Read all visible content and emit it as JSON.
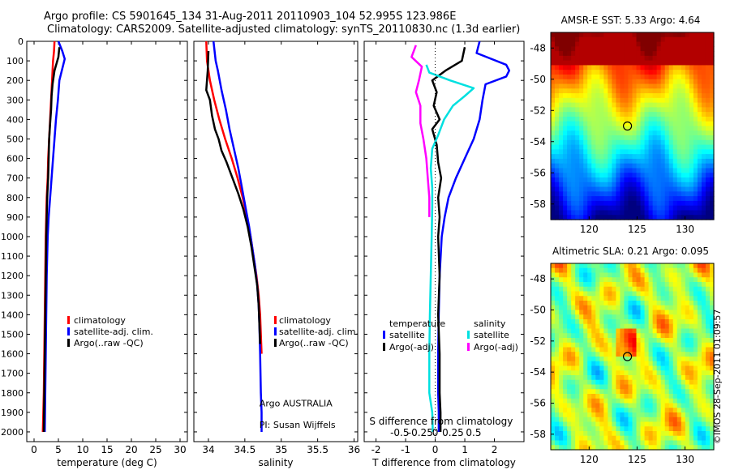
{
  "header": {
    "line1": "Argo profile: CS 5901645_134 31-Aug-2011 20110903_104 52.995S 123.986E",
    "line2": "Climatology: CARS2009. Satellite-adjusted climatology: synTS_20110830.nc (1.3d earlier)"
  },
  "colors": {
    "red": "#ff0000",
    "blue": "#0000ff",
    "black": "#000000",
    "cyan": "#00e0e0",
    "magenta": "#ff00ff"
  },
  "depth_ticks": [
    0,
    100,
    200,
    300,
    400,
    500,
    600,
    700,
    800,
    900,
    1000,
    1100,
    1200,
    1300,
    1400,
    1500,
    1600,
    1700,
    1800,
    1900,
    2000
  ],
  "chart_data": [
    {
      "type": "line",
      "id": "temperature",
      "xlabel": "temperature (deg C)",
      "xlim": [
        -1.5,
        31.5
      ],
      "xticks": [
        0,
        5,
        10,
        15,
        20,
        25,
        30
      ],
      "xtick_labels": [
        "0",
        "5",
        "10",
        "15",
        "20",
        "25",
        "30"
      ],
      "ylim": [
        0,
        2050
      ],
      "legend": {
        "items": [
          {
            "label": "climatology",
            "color": "#ff0000"
          },
          {
            "label": "satellite-adj. clim.",
            "color": "#0000ff"
          },
          {
            "label": "Argo(..raw -QC)",
            "color": "#000000"
          }
        ]
      },
      "series": [
        {
          "name": "climatology",
          "color": "#ff0000",
          "x": [
            4.2,
            4.1,
            3.9,
            3.7,
            3.5,
            3.3,
            3.1,
            2.9,
            2.8,
            2.6,
            2.5,
            2.4,
            2.3,
            2.2,
            2.1,
            2.0,
            1.9,
            1.8
          ],
          "y": [
            0,
            50,
            100,
            200,
            300,
            400,
            500,
            600,
            700,
            800,
            900,
            1000,
            1200,
            1400,
            1600,
            1800,
            1900,
            2000
          ]
        },
        {
          "name": "satellite-adj. clim.",
          "color": "#0000ff",
          "x": [
            5.0,
            5.8,
            6.3,
            5.2,
            4.9,
            4.5,
            4.2,
            3.9,
            3.6,
            3.3,
            3.0,
            2.8,
            2.6,
            2.5,
            2.4,
            2.3,
            2.25,
            2.2
          ],
          "y": [
            0,
            50,
            90,
            200,
            300,
            400,
            500,
            600,
            700,
            800,
            900,
            1000,
            1200,
            1400,
            1600,
            1800,
            1900,
            2000
          ]
        },
        {
          "name": "Argo(..raw -QC)",
          "color": "#000000",
          "x": [
            5.2,
            5.0,
            4.2,
            3.8,
            3.6,
            3.5,
            3.3,
            3.1,
            3.0,
            2.9,
            2.7,
            2.6,
            2.5,
            2.4,
            2.3,
            2.2,
            2.1,
            2.05,
            2.0
          ],
          "y": [
            30,
            80,
            150,
            220,
            280,
            350,
            420,
            500,
            600,
            700,
            800,
            900,
            1000,
            1200,
            1400,
            1600,
            1800,
            1900,
            2000
          ]
        }
      ],
      "annotations": []
    },
    {
      "type": "line",
      "id": "salinity",
      "xlabel": "salinity",
      "xlim": [
        33.8,
        36.05
      ],
      "xticks": [
        34,
        34.5,
        35,
        35.5,
        36
      ],
      "xtick_labels": [
        "34",
        "34.5",
        "35",
        "35.5",
        "36"
      ],
      "ylim": [
        0,
        2050
      ],
      "legend": {
        "items": [
          {
            "label": "climatology",
            "color": "#ff0000"
          },
          {
            "label": "satellite-adj. clim.",
            "color": "#0000ff"
          },
          {
            "label": "Argo(..raw -QC)",
            "color": "#000000"
          }
        ]
      },
      "series": [
        {
          "name": "climatology",
          "color": "#ff0000",
          "x": [
            33.97,
            33.98,
            34.02,
            34.08,
            34.15,
            34.23,
            34.32,
            34.4,
            34.47,
            34.53,
            34.58,
            34.62,
            34.66,
            34.69,
            34.71,
            34.72,
            34.73
          ],
          "y": [
            0,
            100,
            200,
            300,
            400,
            500,
            600,
            700,
            800,
            900,
            1000,
            1100,
            1200,
            1300,
            1400,
            1500,
            1600
          ]
        },
        {
          "name": "satellite-adj. clim.",
          "color": "#0000ff",
          "x": [
            34.07,
            34.1,
            34.13,
            34.18,
            34.24,
            34.29,
            34.35,
            34.41,
            34.46,
            34.51,
            34.56,
            34.6,
            34.64,
            34.67,
            34.69,
            34.7,
            34.71,
            34.72,
            34.73,
            34.73
          ],
          "y": [
            0,
            100,
            150,
            250,
            350,
            450,
            550,
            650,
            750,
            850,
            950,
            1050,
            1150,
            1250,
            1350,
            1450,
            1600,
            1800,
            1900,
            2000
          ]
        },
        {
          "name": "Argo(..raw -QC)",
          "color": "#000000",
          "x": [
            34.0,
            33.99,
            33.97,
            34.02,
            34.05,
            34.09,
            34.14,
            34.18,
            34.25,
            34.33,
            34.41,
            34.48,
            34.54,
            34.59,
            34.63,
            34.67,
            34.69,
            34.7,
            34.71
          ],
          "y": [
            50,
            150,
            250,
            300,
            380,
            450,
            500,
            560,
            620,
            700,
            780,
            860,
            950,
            1050,
            1150,
            1250,
            1350,
            1450,
            1550
          ]
        }
      ],
      "annotations": [
        {
          "text": "Argo AUSTRALIA",
          "x": 34.7,
          "y": 1870
        },
        {
          "text": "PI: Susan Wijffels",
          "x": 34.7,
          "y": 1980
        }
      ]
    },
    {
      "type": "line",
      "id": "difference",
      "xlabel": "T difference from climatology",
      "xlabel_top": "S difference from climatology",
      "xlim": [
        -2.4,
        3.0
      ],
      "xticks": [
        -2,
        -1,
        0,
        1,
        2
      ],
      "xtick_labels": [
        "-2",
        "-1",
        "0",
        "1",
        "2"
      ],
      "sticks_labels": [
        "-0.5",
        "-0.25",
        "0",
        "0.25",
        "0.5"
      ],
      "ylim": [
        0,
        2050
      ],
      "legend": {
        "title_left": "temperature",
        "title_right": "salinity",
        "items": [
          {
            "label": "satellite",
            "color": "#0000ff"
          },
          {
            "label": "Argo(-adj)",
            "color": "#000000"
          },
          {
            "label": "satellite",
            "color": "#00e0e0"
          },
          {
            "label": "Argo(-adj)",
            "color": "#ff00ff"
          }
        ]
      },
      "series": [
        {
          "name": "T satellite",
          "color": "#0000ff",
          "x": [
            1.5,
            1.4,
            2.4,
            2.5,
            2.4,
            1.7,
            1.6,
            1.5,
            1.3,
            1.0,
            0.7,
            0.45,
            0.32,
            0.22,
            0.15,
            0.12,
            0.1,
            0.1,
            0.12,
            0.12
          ],
          "y": [
            0,
            60,
            120,
            150,
            180,
            220,
            300,
            400,
            500,
            600,
            700,
            800,
            900,
            1000,
            1200,
            1400,
            1600,
            1800,
            1900,
            2000
          ]
        },
        {
          "name": "T Argo(-adj)",
          "color": "#000000",
          "x": [
            1.0,
            0.9,
            0.35,
            -0.1,
            0.05,
            -0.05,
            0.15,
            -0.1,
            0.05,
            0.1,
            0.2,
            0.1,
            0.15,
            0.1,
            0.15,
            0.1,
            0.15,
            0.15,
            0.18,
            0.18
          ],
          "y": [
            30,
            100,
            150,
            200,
            260,
            330,
            400,
            450,
            530,
            620,
            700,
            800,
            900,
            1000,
            1200,
            1400,
            1600,
            1800,
            1900,
            2000
          ]
        },
        {
          "name": "S satellite",
          "color": "#00e0e0",
          "x": [
            -0.3,
            -0.2,
            0.5,
            1.3,
            1.0,
            0.6,
            0.3,
            0.1,
            -0.1,
            -0.15,
            -0.1,
            -0.1,
            -0.12,
            -0.15,
            -0.18,
            -0.2,
            -0.2,
            -0.1,
            -0.08
          ],
          "y": [
            120,
            160,
            200,
            240,
            280,
            330,
            400,
            480,
            550,
            650,
            750,
            850,
            1000,
            1200,
            1400,
            1600,
            1800,
            1900,
            2000
          ]
        },
        {
          "name": "S Argo(-adj)",
          "color": "#ff00ff",
          "x": [
            -0.65,
            -0.8,
            -0.45,
            -0.55,
            -0.65,
            -0.5,
            -0.5,
            -0.4,
            -0.3,
            -0.25,
            -0.2,
            -0.2
          ],
          "y": [
            20,
            80,
            130,
            200,
            260,
            330,
            420,
            500,
            600,
            700,
            800,
            900
          ]
        }
      ],
      "annotations": []
    },
    {
      "type": "heatmap",
      "id": "sst_map",
      "title": "AMSR-E SST: 5.33  Argo: 4.64",
      "xlim": [
        116,
        133
      ],
      "ylim": [
        -59,
        -47
      ],
      "xticks": [
        120,
        125,
        130
      ],
      "xtick_labels": [
        "120",
        "125",
        "130"
      ],
      "yticks": [
        -48,
        -50,
        -52,
        -54,
        -56,
        -58
      ],
      "ytick_labels": [
        "-48",
        "-50",
        "-52",
        "-54",
        "-56",
        "-58"
      ],
      "marker": {
        "lon": 124,
        "lat": -53
      }
    },
    {
      "type": "heatmap",
      "id": "sla_map",
      "title": "Altimetric SLA: 0.21  Argo: 0.095",
      "xlim": [
        116,
        133
      ],
      "ylim": [
        -59,
        -47
      ],
      "xticks": [
        120,
        125,
        130
      ],
      "xtick_labels": [
        "120",
        "125",
        "130"
      ],
      "yticks": [
        -48,
        -50,
        -52,
        -54,
        -56,
        -58
      ],
      "ytick_labels": [
        "-48",
        "-50",
        "-52",
        "-54",
        "-56",
        "-58"
      ],
      "marker": {
        "lon": 124,
        "lat": -53
      }
    }
  ],
  "footer": {
    "credit": "©IMOS 28-Sep-2011 01:09:57"
  }
}
